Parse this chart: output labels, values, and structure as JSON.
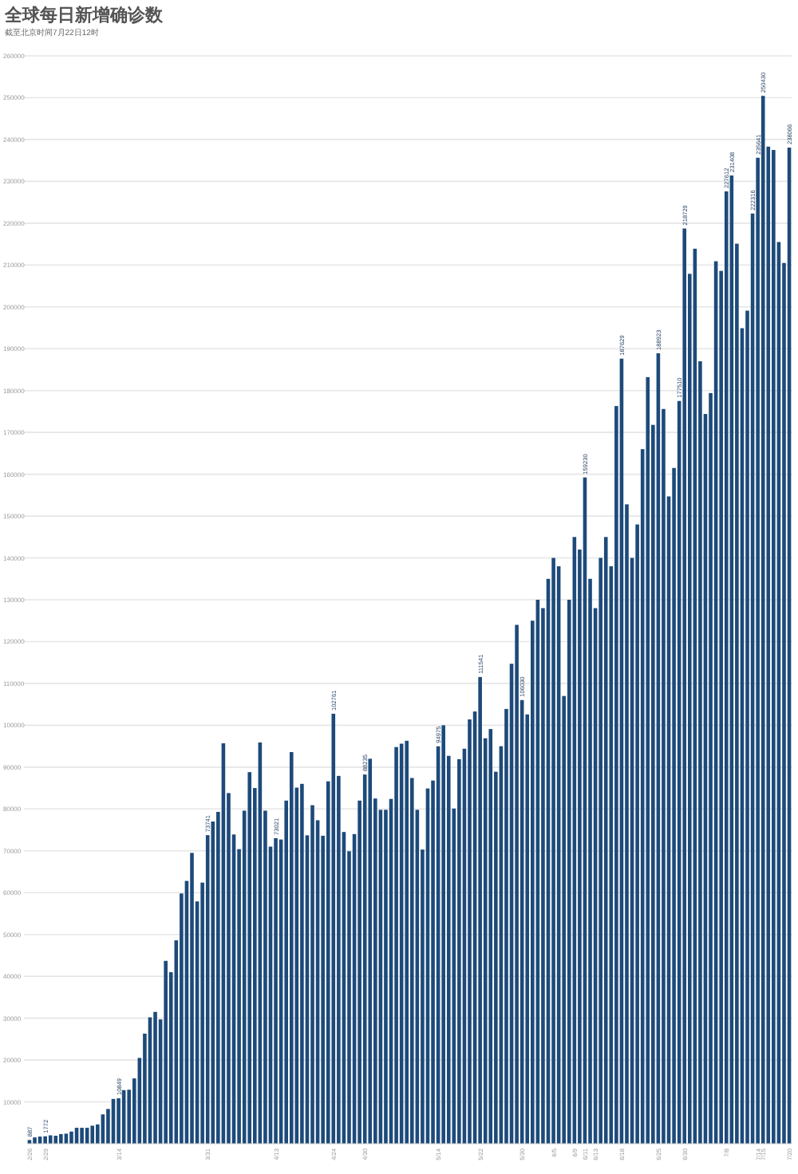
{
  "chart_data": {
    "type": "bar",
    "title": "全球每日新增确诊数",
    "subtitle": "截至北京时间7月22日12时",
    "categories": [
      "2/26",
      null,
      null,
      "2/29",
      null,
      null,
      null,
      null,
      null,
      null,
      null,
      null,
      null,
      null,
      null,
      null,
      null,
      "3/14",
      null,
      null,
      null,
      null,
      null,
      null,
      null,
      null,
      null,
      null,
      null,
      null,
      null,
      null,
      null,
      null,
      "3/31",
      null,
      null,
      null,
      null,
      null,
      null,
      null,
      null,
      null,
      null,
      null,
      null,
      "4/13",
      null,
      null,
      null,
      null,
      null,
      null,
      null,
      null,
      null,
      null,
      "4/24",
      null,
      null,
      null,
      null,
      null,
      "4/30",
      null,
      null,
      null,
      null,
      null,
      null,
      null,
      null,
      null,
      null,
      null,
      null,
      null,
      "5/14",
      null,
      null,
      null,
      null,
      null,
      null,
      null,
      "5/22",
      null,
      null,
      null,
      null,
      null,
      null,
      null,
      "5/30",
      null,
      null,
      null,
      null,
      null,
      "6/5",
      null,
      null,
      null,
      "6/9",
      null,
      "6/11",
      null,
      "6/13",
      null,
      null,
      null,
      null,
      "6/18",
      null,
      null,
      null,
      null,
      null,
      null,
      "6/25",
      null,
      null,
      null,
      null,
      "6/30",
      null,
      null,
      null,
      null,
      null,
      null,
      null,
      "7/8",
      null,
      null,
      null,
      null,
      null,
      "7/14",
      "7/15",
      null,
      null,
      null,
      null,
      "7/20"
    ],
    "series": [
      {
        "color": "#1d4a7a",
        "values": [
          887,
          1500,
          1700,
          1772,
          2000,
          1900,
          2300,
          2400,
          2900,
          3800,
          3800,
          3800,
          4300,
          4600,
          7000,
          8300,
          10700,
          10849,
          12800,
          12900,
          15600,
          20500,
          26300,
          30200,
          31500,
          29700,
          43700,
          41000,
          48600,
          59800,
          62800,
          69500,
          57900,
          62400,
          73741,
          77000,
          79300,
          95700,
          83800,
          73900,
          70400,
          79600,
          88800,
          85000,
          95900,
          79600,
          71000,
          73021,
          72700,
          82000,
          93600,
          85100,
          86000,
          73700,
          80900,
          77300,
          73600,
          86600,
          102761,
          87900,
          74500,
          69900,
          74000,
          82000,
          88235,
          92000,
          82500,
          79800,
          79800,
          82400,
          94800,
          95600,
          96300,
          87400,
          79800,
          70300,
          84900,
          86800,
          94975,
          100000,
          92700,
          80100,
          91900,
          94400,
          101400,
          103300,
          111541,
          96900,
          99100,
          88900,
          95000,
          103900,
          114700,
          124000,
          106030,
          102600,
          125000,
          130000,
          128000,
          135000,
          140000,
          138000,
          107000,
          130000,
          145000,
          142000,
          159230,
          135000,
          128000,
          140000,
          145000,
          138000,
          176300,
          187629,
          152800,
          140000,
          148000,
          166000,
          183200,
          171800,
          188923,
          175600,
          154700,
          161500,
          177510,
          218729,
          207900,
          213900,
          187000,
          174400,
          179400,
          210900,
          208600,
          227612,
          231408,
          215100,
          194900,
          199100,
          222316,
          235641,
          250430,
          238300,
          237500,
          215500,
          210500,
          238066
        ],
        "value_labels": [
          "887",
          null,
          null,
          "1772",
          null,
          null,
          null,
          null,
          null,
          null,
          null,
          null,
          null,
          null,
          null,
          null,
          null,
          "10849",
          null,
          null,
          null,
          null,
          null,
          null,
          null,
          null,
          null,
          null,
          null,
          null,
          null,
          null,
          null,
          null,
          "73741",
          null,
          null,
          null,
          null,
          null,
          null,
          null,
          null,
          null,
          null,
          null,
          null,
          "73021",
          null,
          null,
          null,
          null,
          null,
          null,
          null,
          null,
          null,
          null,
          "102761",
          null,
          null,
          null,
          null,
          null,
          "88235",
          null,
          null,
          null,
          null,
          null,
          null,
          null,
          null,
          null,
          null,
          null,
          null,
          null,
          "94975",
          null,
          null,
          null,
          null,
          null,
          null,
          null,
          "111541",
          null,
          null,
          null,
          null,
          null,
          null,
          null,
          "106030",
          null,
          null,
          null,
          null,
          null,
          null,
          null,
          null,
          null,
          null,
          null,
          "159230",
          null,
          null,
          null,
          null,
          null,
          null,
          "187629",
          null,
          null,
          null,
          null,
          null,
          null,
          "188923",
          null,
          null,
          null,
          "177510",
          "218729",
          null,
          null,
          null,
          null,
          null,
          null,
          null,
          "227612",
          "231408",
          null,
          null,
          null,
          "222316",
          "235641",
          "250430",
          null,
          null,
          null,
          null,
          "238066"
        ]
      }
    ],
    "ylim": [
      0,
      260000
    ],
    "yticks": [
      10000,
      20000,
      30000,
      40000,
      50000,
      60000,
      70000,
      80000,
      90000,
      100000,
      110000,
      120000,
      130000,
      140000,
      150000,
      160000,
      170000,
      180000,
      190000,
      200000,
      210000,
      220000,
      230000,
      240000,
      250000,
      260000
    ],
    "grid": "y"
  }
}
